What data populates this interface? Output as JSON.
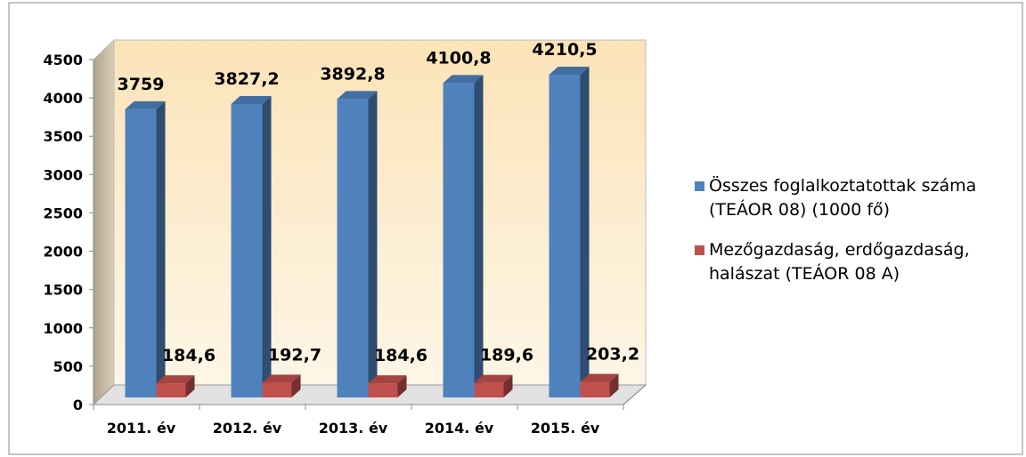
{
  "chart_data": {
    "type": "bar3d",
    "categories": [
      "2011. év",
      "2012. év",
      "2013. év",
      "2014. év",
      "2015. év"
    ],
    "series": [
      {
        "name": "Összes foglalkoztatottak száma (TEÁOR 08) (1000 fő)",
        "color": "#4f81bd",
        "values": [
          3759,
          3827.2,
          3892.8,
          4100.8,
          4210.5
        ],
        "value_labels": [
          "3759",
          "3827,2",
          "3892,8",
          "4100,8",
          "4210,5"
        ]
      },
      {
        "name": "Mezőgazdaság, erdőgazdaság, halászat (TEÁOR 08 A)",
        "color": "#c0504d",
        "values": [
          184.6,
          192.7,
          184.6,
          189.6,
          203.2
        ],
        "value_labels": [
          "184,6",
          "192,7",
          "184,6",
          "189,6",
          "203,2"
        ]
      }
    ],
    "ylim": [
      0,
      4500
    ],
    "yticks": [
      0,
      500,
      1000,
      1500,
      2000,
      2500,
      3000,
      3500,
      4000,
      4500
    ],
    "legend": "right"
  }
}
